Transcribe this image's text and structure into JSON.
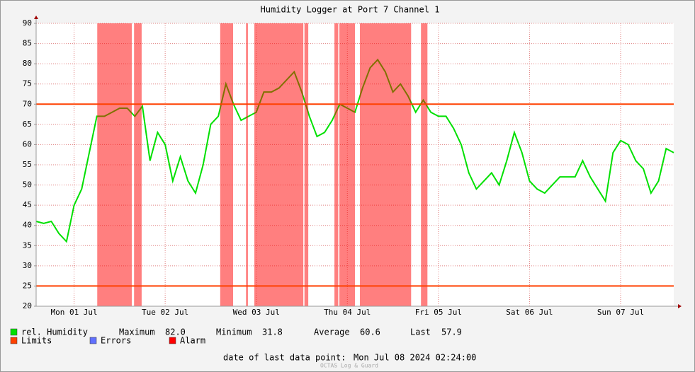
{
  "chart_data": {
    "type": "line",
    "title": "Humidity Logger at Port 7 Channel 1",
    "x": [
      0,
      2,
      4,
      6,
      8,
      10,
      12,
      14,
      16,
      18,
      20,
      22,
      24,
      26,
      28,
      30,
      32,
      34,
      36,
      38,
      40,
      42,
      44,
      46,
      48,
      50,
      52,
      54,
      56,
      58,
      60,
      62,
      64,
      66,
      68,
      70,
      72,
      74,
      76,
      78,
      80,
      82,
      84,
      86,
      88,
      90,
      92,
      94,
      96,
      98,
      100,
      102,
      104,
      106,
      108,
      110,
      112,
      114,
      116,
      118,
      120,
      122,
      124,
      126,
      128,
      130,
      132,
      134,
      136,
      138,
      140,
      142,
      144,
      146,
      148,
      150,
      152,
      154,
      156,
      158,
      160,
      162,
      164,
      166,
      168
    ],
    "series": [
      {
        "name": "rel. Humidity",
        "color": "#00e000",
        "values": [
          41,
          40.5,
          41,
          38,
          36,
          45,
          49,
          58,
          67,
          67,
          68,
          69,
          69,
          67,
          69.5,
          56,
          63,
          60,
          51,
          57,
          51,
          48,
          55,
          65,
          67,
          75,
          70,
          66,
          67,
          68,
          73,
          73,
          74,
          76,
          78,
          73,
          67,
          62,
          63,
          66,
          70,
          69,
          68,
          74,
          79,
          81,
          78,
          73,
          75,
          72,
          68,
          71,
          68,
          67,
          67,
          64,
          60,
          53,
          49,
          51,
          53,
          50,
          56,
          63,
          58,
          51,
          49,
          48,
          50,
          52,
          52,
          52,
          56,
          52,
          49,
          46,
          58,
          61,
          60,
          56,
          54,
          48,
          51,
          59,
          58
        ]
      }
    ],
    "limits": [
      70,
      25
    ],
    "limits_name": "Limits",
    "limits_color": "#ff4000",
    "errors_name": "Errors",
    "errors_color": "#6070ff",
    "alarm_name": "Alarm",
    "alarm_color": "#ff0000",
    "alarm_periods": [
      [
        16.1,
        25.2
      ],
      [
        25.8,
        27.8
      ],
      [
        48.5,
        51.9
      ],
      [
        55.3,
        55.8
      ],
      [
        57.5,
        70.4
      ],
      [
        70.7,
        71.7
      ],
      [
        78.6,
        79.6
      ],
      [
        79.9,
        84.0
      ],
      [
        85.3,
        98.8
      ],
      [
        101.4,
        103.1
      ]
    ],
    "xlim": [
      0,
      168
    ],
    "xticks": [
      {
        "value": 10,
        "label": "Mon 01 Jul"
      },
      {
        "value": 34,
        "label": "Tue 02 Jul"
      },
      {
        "value": 58,
        "label": "Wed 03 Jul"
      },
      {
        "value": 82,
        "label": "Thu 04 Jul"
      },
      {
        "value": 106,
        "label": "Fri 05 Jul"
      },
      {
        "value": 130,
        "label": "Sat 06 Jul"
      },
      {
        "value": 154,
        "label": "Sun 07 Jul"
      }
    ],
    "ylim": [
      20,
      90
    ],
    "yticks": [
      20,
      25,
      30,
      35,
      40,
      45,
      50,
      55,
      60,
      65,
      70,
      75,
      80,
      85,
      90
    ],
    "grid": true,
    "stats": [
      {
        "label": "Maximum",
        "value": "82.0"
      },
      {
        "label": "Minimum",
        "value": "31.8"
      },
      {
        "label": "Average",
        "value": "60.6"
      },
      {
        "label": "Last",
        "value": "57.9"
      }
    ],
    "footer_label": "date of last data point:",
    "footer_date": "Mon Jul 08 2024 02:24:00",
    "watermark": "OCTAS Log & Guard"
  }
}
